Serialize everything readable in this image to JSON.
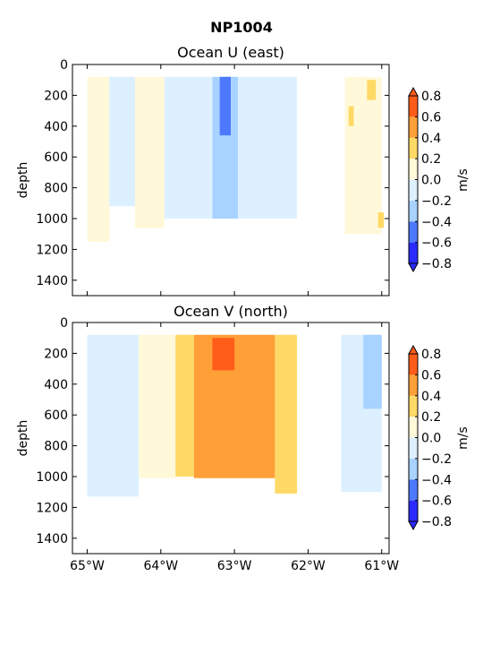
{
  "figure": {
    "title": "NP1004"
  },
  "colorbar": {
    "label": "m/s",
    "ticks": [
      "0.8",
      "0.6",
      "0.4",
      "0.2",
      "0.0",
      "−0.2",
      "−0.4",
      "−0.6",
      "−0.8"
    ],
    "levels": [
      -0.8,
      -0.6,
      -0.4,
      -0.2,
      0.0,
      0.2,
      0.4,
      0.6,
      0.8
    ],
    "colors": [
      "#2b2bff",
      "#4d79ff",
      "#a8d2ff",
      "#ddf0ff",
      "#fff9d9",
      "#ffd966",
      "#ff9f38",
      "#ff5c1a"
    ],
    "extend": "both"
  },
  "chart_data": [
    {
      "type": "heatmap",
      "title": "Ocean U (east)",
      "xlabel": "",
      "ylabel": "depth",
      "x_ticks": [
        -65,
        -64,
        -63,
        -62,
        -61
      ],
      "x_tick_labels": [
        "65°W",
        "64°W",
        "63°W",
        "62°W",
        "61°W"
      ],
      "y_ticks": [
        0,
        200,
        400,
        600,
        800,
        1000,
        1200,
        1400
      ],
      "xlim": [
        -65.2,
        -60.9
      ],
      "ylim": [
        1500,
        0
      ],
      "data_depth_range": [
        80,
        1150
      ],
      "regions": [
        {
          "x0": -65.0,
          "x1": -64.7,
          "d0": 80,
          "d1": 1150,
          "v": 0.1
        },
        {
          "x0": -64.7,
          "x1": -64.35,
          "d0": 80,
          "d1": 920,
          "v": -0.1
        },
        {
          "x0": -64.35,
          "x1": -63.95,
          "d0": 80,
          "d1": 1060,
          "v": 0.1
        },
        {
          "x0": -63.95,
          "x1": -63.3,
          "d0": 80,
          "d1": 1000,
          "v": -0.1
        },
        {
          "x0": -63.3,
          "x1": -62.95,
          "d0": 80,
          "d1": 1000,
          "v": -0.3
        },
        {
          "x0": -63.2,
          "x1": -63.05,
          "d0": 80,
          "d1": 460,
          "v": -0.5
        },
        {
          "x0": -62.95,
          "x1": -62.15,
          "d0": 80,
          "d1": 1000,
          "v": -0.1
        },
        {
          "x0": -61.5,
          "x1": -61.0,
          "d0": 80,
          "d1": 1100,
          "v": 0.1
        },
        {
          "x0": -61.2,
          "x1": -61.08,
          "d0": 100,
          "d1": 230,
          "v": 0.3
        },
        {
          "x0": -61.45,
          "x1": -61.38,
          "d0": 270,
          "d1": 400,
          "v": 0.3
        },
        {
          "x0": -61.05,
          "x1": -60.97,
          "d0": 960,
          "d1": 1060,
          "v": 0.3
        }
      ]
    },
    {
      "type": "heatmap",
      "title": "Ocean V (north)",
      "xlabel": "",
      "ylabel": "depth",
      "x_ticks": [
        -65,
        -64,
        -63,
        -62,
        -61
      ],
      "x_tick_labels": [
        "65°W",
        "64°W",
        "63°W",
        "62°W",
        "61°W"
      ],
      "y_ticks": [
        0,
        200,
        400,
        600,
        800,
        1000,
        1200,
        1400
      ],
      "xlim": [
        -65.2,
        -60.9
      ],
      "ylim": [
        1500,
        0
      ],
      "data_depth_range": [
        80,
        1150
      ],
      "regions": [
        {
          "x0": -65.0,
          "x1": -64.3,
          "d0": 80,
          "d1": 1130,
          "v": -0.1
        },
        {
          "x0": -64.3,
          "x1": -63.8,
          "d0": 80,
          "d1": 1010,
          "v": 0.1
        },
        {
          "x0": -63.8,
          "x1": -63.55,
          "d0": 80,
          "d1": 1000,
          "v": 0.3
        },
        {
          "x0": -63.55,
          "x1": -62.45,
          "d0": 80,
          "d1": 1010,
          "v": 0.5
        },
        {
          "x0": -63.3,
          "x1": -63.0,
          "d0": 100,
          "d1": 310,
          "v": 0.7
        },
        {
          "x0": -62.45,
          "x1": -62.15,
          "d0": 80,
          "d1": 1110,
          "v": 0.3
        },
        {
          "x0": -61.55,
          "x1": -61.0,
          "d0": 80,
          "d1": 1100,
          "v": -0.1
        },
        {
          "x0": -61.25,
          "x1": -61.0,
          "d0": 80,
          "d1": 560,
          "v": -0.3
        }
      ]
    }
  ]
}
